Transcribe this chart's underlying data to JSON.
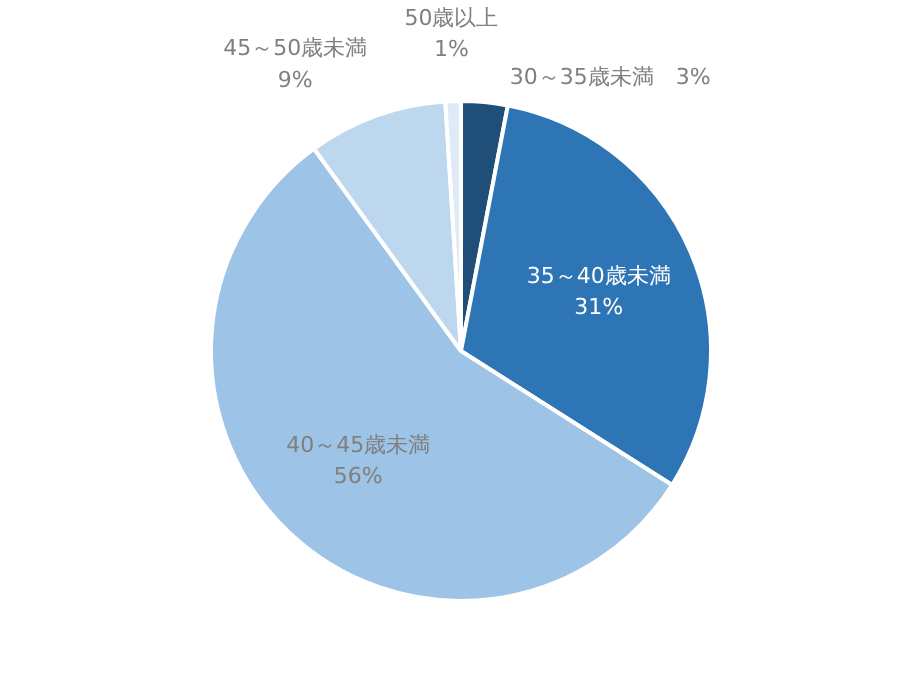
{
  "chart_data": {
    "type": "pie",
    "categories": [
      "30～35歳未満",
      "35～40歳未満",
      "40～45歳未満",
      "45～50歳未満",
      "50歳以上"
    ],
    "values": [
      3,
      31,
      56,
      9,
      1
    ],
    "colors": [
      "#1f4e79",
      "#2e75b6",
      "#9dc3e6",
      "#bdd7ee",
      "#deebf7"
    ],
    "value_labels": [
      "3%",
      "31%",
      "56%",
      "9%",
      "1%"
    ]
  }
}
